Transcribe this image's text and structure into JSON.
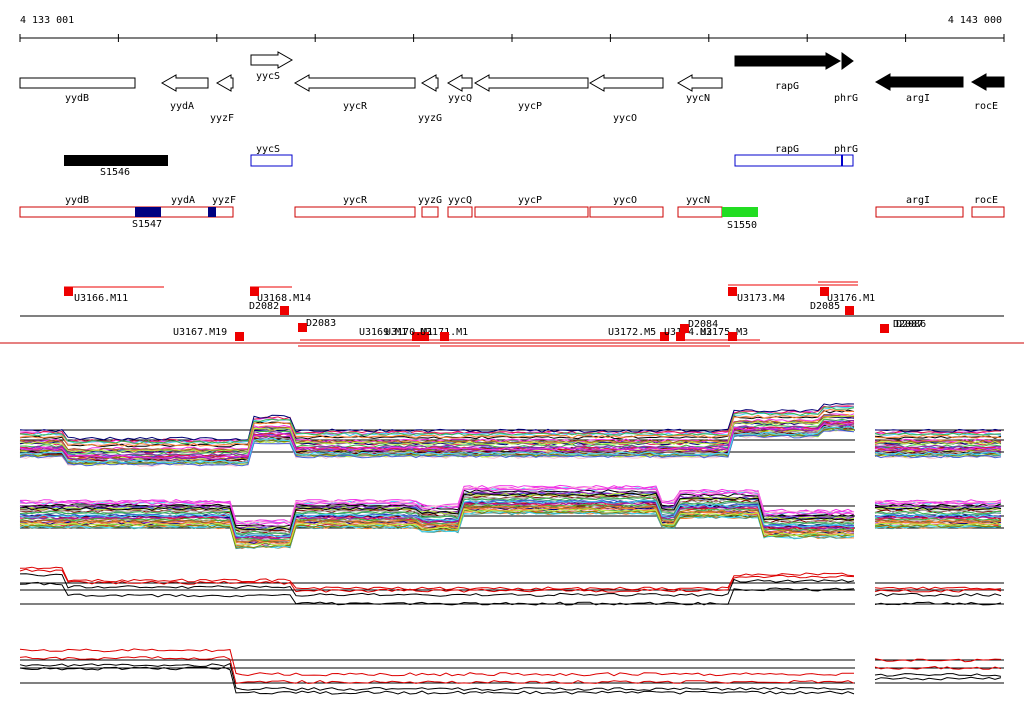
{
  "ruler": {
    "start": "4 133 001",
    "end": "4 143 000"
  },
  "genes": [
    "yydB",
    "yydA",
    "yyzF",
    "yycS",
    "yycR",
    "yyzG",
    "yycQ",
    "yycP",
    "yycO",
    "yycN",
    "rapG",
    "phrG",
    "argI",
    "rocE"
  ],
  "segments": [
    "S1546",
    "S1547",
    "S1550"
  ],
  "blue_track": [
    "yycS",
    "rapG",
    "phrG"
  ],
  "red_track": [
    "yydB",
    "yydA",
    "yyzF",
    "yycR",
    "yyzG",
    "yycQ",
    "yycP",
    "yycO",
    "yycN",
    "argI",
    "rocE"
  ],
  "transcripts": [
    "U3166.M11",
    "U3168.M14",
    "D2082",
    "U3167.M19",
    "D2083",
    "U3169.M1",
    "U3170.M1",
    "U3171.M1",
    "U3172.M5",
    "U3174.M2",
    "D2084",
    "U3175.M3",
    "U3173.M4",
    "U3176.M1",
    "D2085",
    "D2087",
    "D2086"
  ]
}
